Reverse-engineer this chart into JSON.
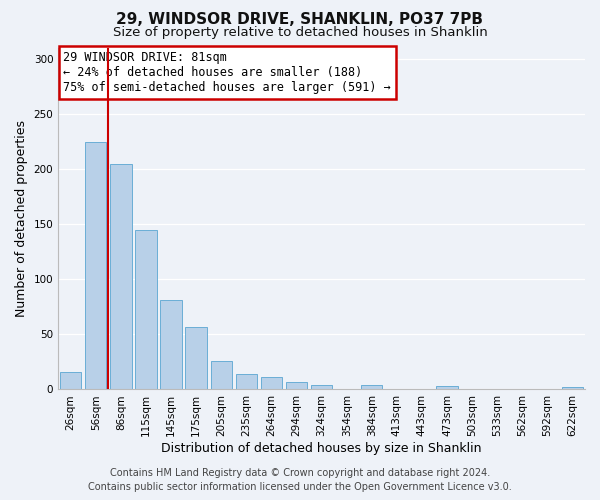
{
  "title": "29, WINDSOR DRIVE, SHANKLIN, PO37 7PB",
  "subtitle": "Size of property relative to detached houses in Shanklin",
  "xlabel": "Distribution of detached houses by size in Shanklin",
  "ylabel": "Number of detached properties",
  "bar_labels": [
    "26sqm",
    "56sqm",
    "86sqm",
    "115sqm",
    "145sqm",
    "175sqm",
    "205sqm",
    "235sqm",
    "264sqm",
    "294sqm",
    "324sqm",
    "354sqm",
    "384sqm",
    "413sqm",
    "443sqm",
    "473sqm",
    "503sqm",
    "533sqm",
    "562sqm",
    "592sqm",
    "622sqm"
  ],
  "bar_values": [
    16,
    224,
    204,
    145,
    81,
    57,
    26,
    14,
    11,
    7,
    4,
    0,
    4,
    0,
    0,
    3,
    0,
    0,
    0,
    0,
    2
  ],
  "bar_color": "#b8d0e8",
  "bar_edge_color": "#6aaed6",
  "vline_x_idx": 1.5,
  "vline_color": "#cc0000",
  "annotation_title": "29 WINDSOR DRIVE: 81sqm",
  "annotation_line1": "← 24% of detached houses are smaller (188)",
  "annotation_line2": "75% of semi-detached houses are larger (591) →",
  "annotation_box_edge": "#cc0000",
  "ylim": [
    0,
    310
  ],
  "yticks": [
    0,
    50,
    100,
    150,
    200,
    250,
    300
  ],
  "footer1": "Contains HM Land Registry data © Crown copyright and database right 2024.",
  "footer2": "Contains public sector information licensed under the Open Government Licence v3.0.",
  "bg_color": "#eef2f8",
  "plot_bg_color": "#eef2f8",
  "grid_color": "#ffffff",
  "title_fontsize": 11,
  "subtitle_fontsize": 9.5,
  "axis_label_fontsize": 9,
  "tick_fontsize": 7.5,
  "footer_fontsize": 7,
  "ann_fontsize": 8.5
}
